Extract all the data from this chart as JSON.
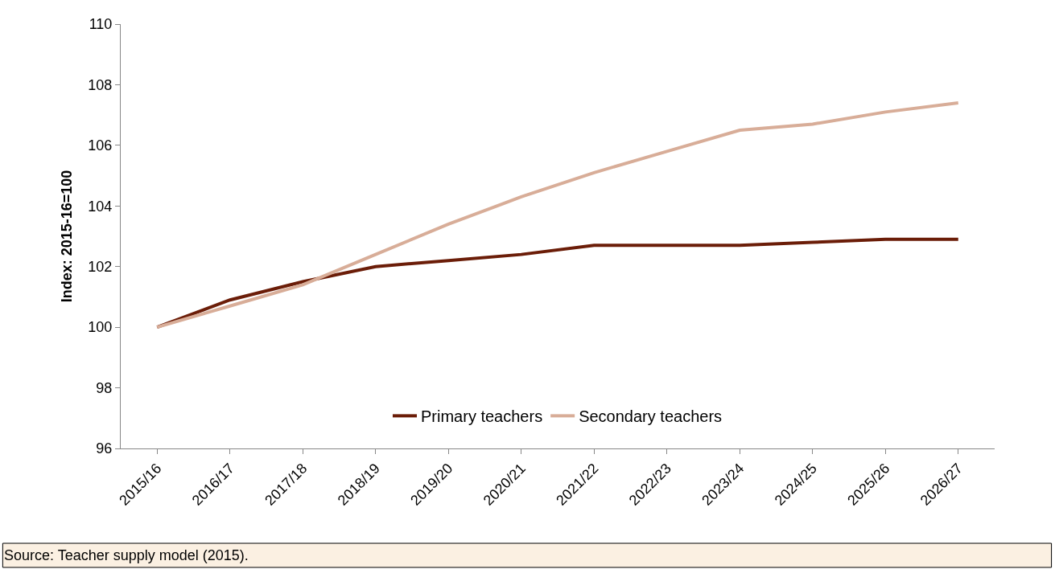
{
  "chart_data": {
    "type": "line",
    "ylabel": "Index: 2015-16=100",
    "categories": [
      "2015/16",
      "2016/17",
      "2017/18",
      "2018/19",
      "2019/20",
      "2020/21",
      "2021/22",
      "2022/23",
      "2023/24",
      "2024/25",
      "2025/26",
      "2026/27"
    ],
    "series": [
      {
        "name": "Primary teachers",
        "color": "#6b1d08",
        "values": [
          100,
          100.9,
          101.5,
          102.0,
          102.2,
          102.4,
          102.7,
          102.7,
          102.7,
          102.8,
          102.9,
          102.9
        ]
      },
      {
        "name": "Secondary teachers",
        "color": "#d8ad98",
        "values": [
          100,
          100.7,
          101.4,
          102.4,
          103.4,
          104.3,
          105.1,
          105.8,
          106.5,
          106.7,
          107.1,
          107.4
        ]
      }
    ],
    "ylim": [
      96,
      110
    ],
    "yticks": [
      96,
      98,
      100,
      102,
      104,
      106,
      108,
      110
    ],
    "legend": "bottom",
    "marker": "none",
    "line_style": "solid",
    "annotations": [
      "Source: Teacher supply model (2015)."
    ]
  }
}
